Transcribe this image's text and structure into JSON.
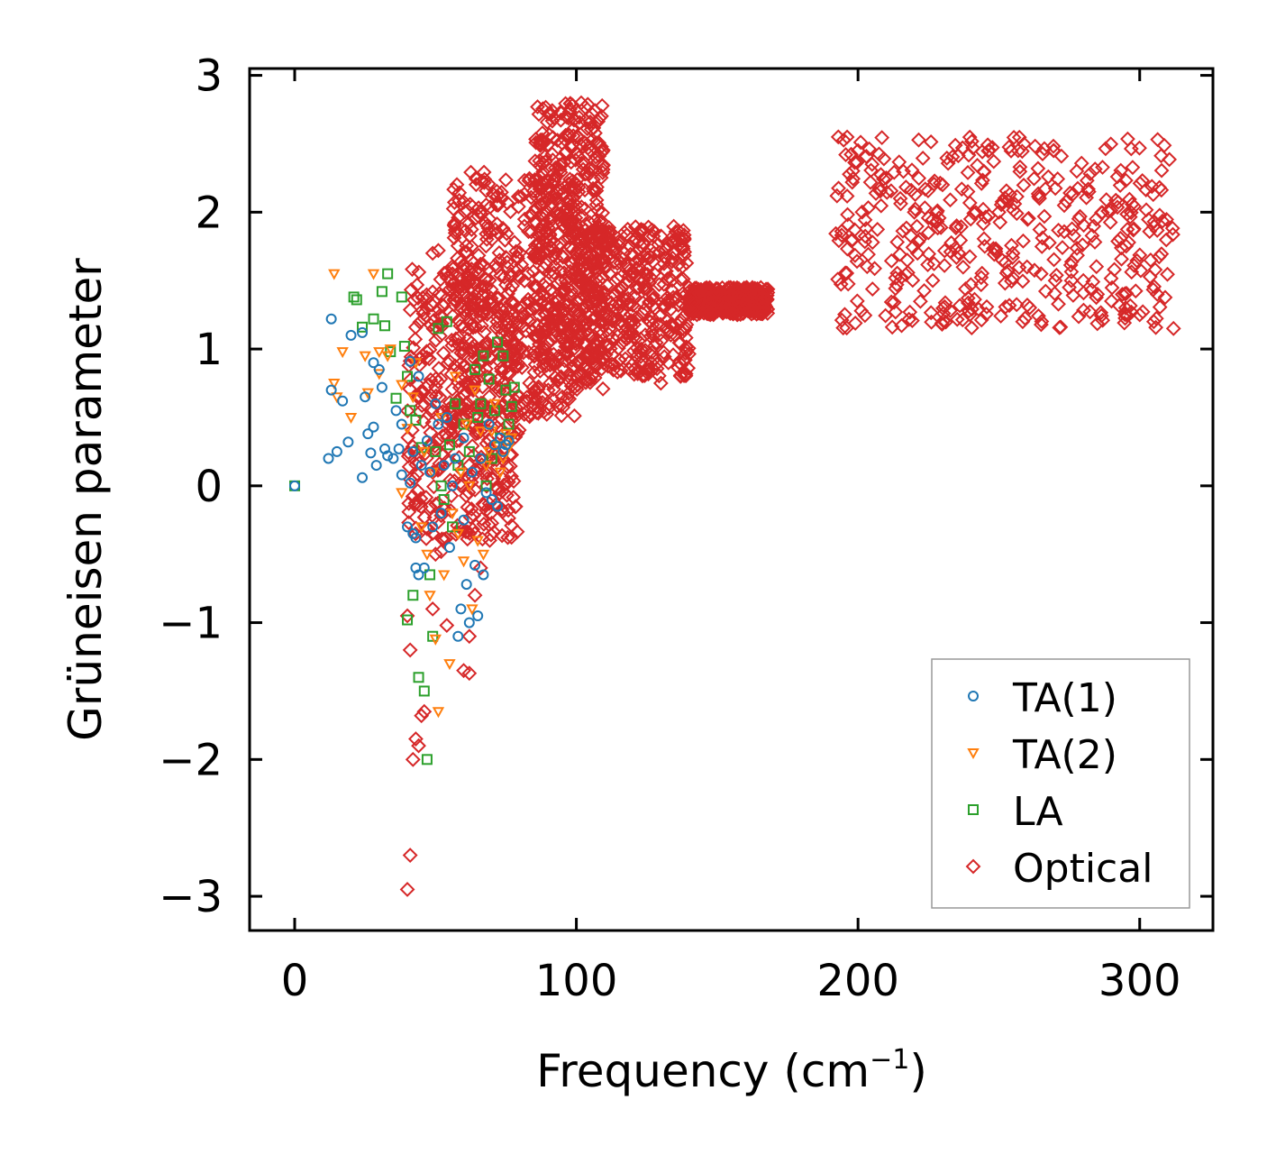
{
  "chart_data": {
    "type": "scatter",
    "title": "",
    "xlabel": "Frequency (cm",
    "xlabel_sup": "−1",
    "xlabel_end": ")",
    "ylabel": "Grüneisen parameter",
    "xlim": [
      -16,
      326
    ],
    "ylim": [
      -3.25,
      3.05
    ],
    "xticks": [
      0,
      100,
      200,
      300
    ],
    "xtick_labels": [
      "0",
      "100",
      "200",
      "300"
    ],
    "yticks": [
      -3,
      -2,
      -1,
      0,
      1,
      2,
      3
    ],
    "ytick_labels": [
      "−3",
      "−2",
      "−1",
      "0",
      "1",
      "2",
      "3"
    ],
    "legend_position": "lower-right",
    "series": [
      {
        "name": "TA(1)",
        "marker": "circle",
        "color": "#1f77b4",
        "points": [
          [
            0,
            0
          ],
          [
            12,
            0.2
          ],
          [
            13,
            0.7
          ],
          [
            13,
            1.22
          ],
          [
            15,
            0.25
          ],
          [
            17,
            0.62
          ],
          [
            19,
            0.32
          ],
          [
            20,
            1.1
          ],
          [
            24,
            0.06
          ],
          [
            24,
            1.12
          ],
          [
            25,
            0.65
          ],
          [
            26,
            0.38
          ],
          [
            27,
            0.24
          ],
          [
            28,
            0.9
          ],
          [
            28,
            0.43
          ],
          [
            29,
            0.15
          ],
          [
            30,
            0.85
          ],
          [
            31,
            0.72
          ],
          [
            32,
            0.27
          ],
          [
            33,
            0.22
          ],
          [
            35,
            0.2
          ],
          [
            36,
            0.55
          ],
          [
            37,
            0.27
          ],
          [
            38,
            0.45
          ],
          [
            38,
            0.08
          ],
          [
            40,
            -0.3
          ],
          [
            41,
            0.02
          ],
          [
            41,
            0.91
          ],
          [
            42,
            -0.35
          ],
          [
            42,
            0.25
          ],
          [
            43,
            -0.6
          ],
          [
            43,
            -0.38
          ],
          [
            44,
            -0.65
          ],
          [
            44,
            0.8
          ],
          [
            45,
            0.15
          ],
          [
            46,
            -0.6
          ],
          [
            47,
            0.33
          ],
          [
            48,
            0.1
          ],
          [
            49,
            -0.3
          ],
          [
            50,
            0.6
          ],
          [
            51,
            0.45
          ],
          [
            52,
            -0.2
          ],
          [
            53,
            0.15
          ],
          [
            54,
            0.5
          ],
          [
            55,
            -0.45
          ],
          [
            56,
            0.0
          ],
          [
            57,
            0.2
          ],
          [
            58,
            -1.1
          ],
          [
            59,
            -0.9
          ],
          [
            60,
            -0.25
          ],
          [
            60,
            0.35
          ],
          [
            61,
            -0.72
          ],
          [
            62,
            -1.0
          ],
          [
            63,
            0.1
          ],
          [
            64,
            -0.58
          ],
          [
            65,
            -0.95
          ],
          [
            66,
            0.2
          ],
          [
            67,
            -0.65
          ],
          [
            68,
            -0.05
          ],
          [
            69,
            0.45
          ],
          [
            70,
            -0.1
          ],
          [
            71,
            0.3
          ],
          [
            72,
            -0.15
          ],
          [
            73,
            0.35
          ],
          [
            74,
            0.25
          ],
          [
            75,
            0.3
          ],
          [
            76,
            0.33
          ]
        ]
      },
      {
        "name": "TA(2)",
        "marker": "triangle-down",
        "color": "#ff7f0e",
        "points": [
          [
            14,
            1.55
          ],
          [
            14,
            0.75
          ],
          [
            15,
            0.65
          ],
          [
            17,
            0.98
          ],
          [
            20,
            0.5
          ],
          [
            25,
            0.95
          ],
          [
            26,
            0.68
          ],
          [
            28,
            1.55
          ],
          [
            30,
            0.98
          ],
          [
            30,
            0.82
          ],
          [
            33,
            0.95
          ],
          [
            34,
            1.0
          ],
          [
            38,
            -0.05
          ],
          [
            38,
            0.74
          ],
          [
            40,
            0.42
          ],
          [
            42,
            0.65
          ],
          [
            43,
            0.9
          ],
          [
            45,
            -0.3
          ],
          [
            46,
            0.25
          ],
          [
            47,
            -0.5
          ],
          [
            48,
            -0.8
          ],
          [
            49,
            0.1
          ],
          [
            50,
            -1.12
          ],
          [
            51,
            -1.65
          ],
          [
            52,
            0.5
          ],
          [
            53,
            -0.65
          ],
          [
            55,
            -1.3
          ],
          [
            56,
            -0.2
          ],
          [
            57,
            0.8
          ],
          [
            58,
            -0.35
          ],
          [
            59,
            0.1
          ],
          [
            60,
            -0.55
          ],
          [
            61,
            0.45
          ],
          [
            62,
            0.0
          ],
          [
            63,
            -0.9
          ],
          [
            64,
            0.7
          ],
          [
            65,
            -0.4
          ],
          [
            66,
            0.4
          ],
          [
            67,
            -0.5
          ],
          [
            68,
            0.15
          ],
          [
            69,
            0.25
          ],
          [
            70,
            0.4
          ],
          [
            71,
            0.6
          ],
          [
            72,
            0.3
          ],
          [
            73,
            0.1
          ],
          [
            74,
            0.2
          ],
          [
            75,
            0.38
          ],
          [
            76,
            0.28
          ],
          [
            77,
            0.35
          ]
        ]
      },
      {
        "name": "LA",
        "marker": "square",
        "color": "#2ca02c",
        "points": [
          [
            0,
            0
          ],
          [
            21,
            1.38
          ],
          [
            22,
            1.36
          ],
          [
            24,
            1.16
          ],
          [
            28,
            1.22
          ],
          [
            31,
            1.42
          ],
          [
            32,
            1.17
          ],
          [
            33,
            1.55
          ],
          [
            34,
            0.98
          ],
          [
            36,
            0.64
          ],
          [
            38,
            1.38
          ],
          [
            39,
            1.02
          ],
          [
            40,
            0.8
          ],
          [
            40,
            -0.98
          ],
          [
            41,
            0.55
          ],
          [
            42,
            -0.8
          ],
          [
            43,
            0.48
          ],
          [
            44,
            -1.4
          ],
          [
            45,
            0.28
          ],
          [
            46,
            -1.5
          ],
          [
            47,
            -2.0
          ],
          [
            48,
            -0.65
          ],
          [
            49,
            -1.1
          ],
          [
            50,
            0.25
          ],
          [
            51,
            1.15
          ],
          [
            52,
            0.0
          ],
          [
            53,
            -0.1
          ],
          [
            54,
            1.2
          ],
          [
            55,
            0.3
          ],
          [
            56,
            -0.3
          ],
          [
            57,
            0.6
          ],
          [
            58,
            0.15
          ],
          [
            60,
            0.45
          ],
          [
            62,
            0.25
          ],
          [
            64,
            0.85
          ],
          [
            65,
            0.5
          ],
          [
            66,
            0.6
          ],
          [
            67,
            0.95
          ],
          [
            68,
            0.0
          ],
          [
            69,
            0.78
          ],
          [
            70,
            0.2
          ],
          [
            71,
            0.55
          ],
          [
            72,
            1.05
          ],
          [
            73,
            0.35
          ],
          [
            74,
            0.95
          ],
          [
            75,
            0.7
          ],
          [
            76,
            0.45
          ],
          [
            77,
            0.58
          ],
          [
            78,
            0.72
          ]
        ]
      },
      {
        "name": "Optical",
        "marker": "diamond",
        "color": "#d62728",
        "dense_bands": [
          {
            "x": [
              40,
              80
            ],
            "y": [
              -0.4,
              1.6
            ]
          },
          {
            "x": [
              55,
              100
            ],
            "y": [
              0.5,
              2.3
            ]
          },
          {
            "x": [
              85,
              110
            ],
            "y": [
              0.7,
              2.8
            ]
          },
          {
            "x": [
              100,
              140
            ],
            "y": [
              0.8,
              1.9
            ]
          },
          {
            "x": [
              140,
              168
            ],
            "y": [
              1.25,
              1.45
            ]
          },
          {
            "x": [
              192,
              312
            ],
            "y": [
              1.15,
              2.55
            ]
          }
        ],
        "points": [
          [
            40,
            -2.95
          ],
          [
            41,
            -2.7
          ],
          [
            42,
            -2.0
          ],
          [
            43,
            -1.85
          ],
          [
            44,
            -1.9
          ],
          [
            45,
            -1.68
          ],
          [
            46,
            -1.65
          ],
          [
            41,
            -1.2
          ],
          [
            40,
            -0.95
          ],
          [
            49,
            -0.9
          ],
          [
            50,
            -0.5
          ],
          [
            52,
            -0.48
          ],
          [
            54,
            -1.02
          ],
          [
            60,
            -1.35
          ],
          [
            62,
            -1.37
          ],
          [
            62,
            -1.1
          ],
          [
            64,
            -0.8
          ],
          [
            66,
            -0.6
          ],
          [
            64,
            1.95
          ],
          [
            70,
            1.8
          ],
          [
            72,
            1.85
          ],
          [
            47,
            1.3
          ],
          [
            49,
            1.7
          ],
          [
            51,
            1.72
          ],
          [
            56,
            1.55
          ],
          [
            58,
            1.45
          ],
          [
            62,
            1.5
          ],
          [
            66,
            1.62
          ],
          [
            74,
            0.75
          ],
          [
            80,
            1.0
          ],
          [
            90,
            0.7
          ],
          [
            95,
            0.65
          ],
          [
            104,
            0.95
          ],
          [
            118,
            1.12
          ],
          [
            125,
            0.85
          ],
          [
            130,
            0.75
          ],
          [
            137,
            0.8
          ],
          [
            140,
            1.45
          ],
          [
            150,
            1.35
          ],
          [
            160,
            1.38
          ],
          [
            167,
            1.42
          ],
          [
            193,
            2.55
          ],
          [
            200,
            2.45
          ],
          [
            205,
            2.35
          ],
          [
            210,
            2.25
          ],
          [
            215,
            2.1
          ],
          [
            220,
            2.0
          ],
          [
            225,
            1.85
          ],
          [
            230,
            2.2
          ],
          [
            235,
            1.9
          ],
          [
            240,
            1.95
          ],
          [
            245,
            1.75
          ],
          [
            250,
            2.0
          ],
          [
            255,
            1.7
          ],
          [
            260,
            1.6
          ],
          [
            265,
            1.55
          ],
          [
            270,
            1.5
          ],
          [
            275,
            1.45
          ],
          [
            280,
            1.5
          ],
          [
            285,
            1.4
          ],
          [
            290,
            1.35
          ],
          [
            295,
            1.3
          ],
          [
            300,
            1.25
          ],
          [
            305,
            1.2
          ],
          [
            312,
            1.15
          ]
        ]
      }
    ]
  }
}
